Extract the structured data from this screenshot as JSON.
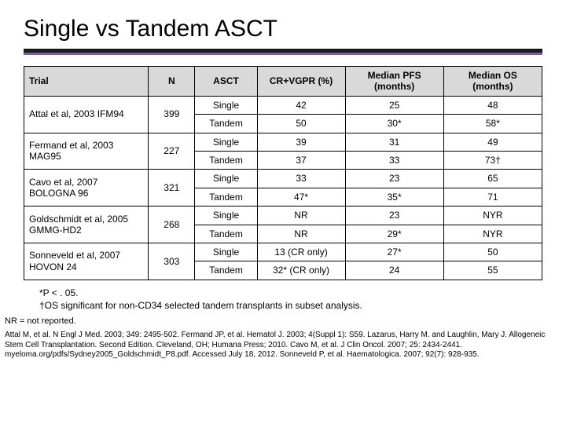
{
  "title": "Single vs Tandem ASCT",
  "colors": {
    "rule_dark": "#1a1a1a",
    "rule_purple": "#7a5ea8",
    "header_bg": "#d9d9d9",
    "border": "#000000",
    "text": "#000000",
    "background": "#ffffff"
  },
  "table": {
    "columns": [
      "Trial",
      "N",
      "ASCT",
      "CR+VGPR (%)",
      "Median PFS (months)",
      "Median OS (months)"
    ],
    "trials": [
      {
        "name": "Attal et al, 2003 IFM94",
        "n": "399",
        "rows": [
          {
            "asct": "Single",
            "cr": "42",
            "pfs": "25",
            "os": "48"
          },
          {
            "asct": "Tandem",
            "cr": "50",
            "pfs": "30*",
            "os": "58*"
          }
        ]
      },
      {
        "name": "Fermand et al, 2003 MAG95",
        "n": "227",
        "rows": [
          {
            "asct": "Single",
            "cr": "39",
            "pfs": "31",
            "os": "49"
          },
          {
            "asct": "Tandem",
            "cr": "37",
            "pfs": "33",
            "os": "73†"
          }
        ]
      },
      {
        "name": "Cavo et al, 2007 BOLOGNA 96",
        "n": "321",
        "rows": [
          {
            "asct": "Single",
            "cr": "33",
            "pfs": "23",
            "os": "65"
          },
          {
            "asct": "Tandem",
            "cr": "47*",
            "pfs": "35*",
            "os": "71"
          }
        ]
      },
      {
        "name": "Goldschmidt et al, 2005 GMMG-HD2",
        "n": "268",
        "rows": [
          {
            "asct": "Single",
            "cr": "NR",
            "pfs": "23",
            "os": "NYR"
          },
          {
            "asct": "Tandem",
            "cr": "NR",
            "pfs": "29*",
            "os": "NYR"
          }
        ]
      },
      {
        "name": "Sonneveld et al, 2007 HOVON 24",
        "n": "303",
        "rows": [
          {
            "asct": "Single",
            "cr": "13 (CR only)",
            "pfs": "27*",
            "os": "50"
          },
          {
            "asct": "Tandem",
            "cr": "32* (CR only)",
            "pfs": "24",
            "os": "55"
          }
        ]
      }
    ]
  },
  "footnotes": {
    "p": "*P < . 05.",
    "os": "†OS significant for non-CD34 selected tandem transplants in subset analysis."
  },
  "abbr": "NR = not reported.",
  "refs": "Attal M, et al. N Engl J Med. 2003; 349: 2495-502. Fermand JP, et al. Hematol J. 2003; 4(Suppl 1): S59. Lazarus, Harry M. and Laughlin, Mary J. Allogeneic Stem Cell Transplantation. Second Edition. Cleveland, OH; Humana Press; 2010. Cavo M, et al. J Clin Oncol. 2007; 25: 2434-2441. myeloma.org/pdfs/Sydney2005_Goldschmidt_P8.pdf. Accessed July 18, 2012. Sonneveld P, et al. Haematologica. 2007; 92(7): 928-935."
}
